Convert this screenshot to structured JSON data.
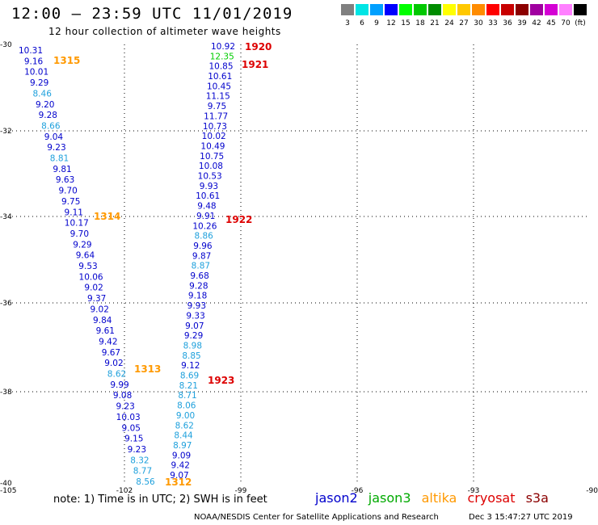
{
  "header": {
    "title": "12:00 – 23:59 UTC 11/01/2019",
    "subtitle": "12 hour collection of altimeter wave heights"
  },
  "legend": {
    "colors": [
      "#808080",
      "#00e5e5",
      "#00a0ff",
      "#0000ff",
      "#00ff00",
      "#00c800",
      "#008c00",
      "#ffff00",
      "#ffc800",
      "#ff8c00",
      "#ff0000",
      "#c80000",
      "#8c0000",
      "#a000a0",
      "#d400d4",
      "#ff80ff",
      "#000000"
    ],
    "labels": [
      "3",
      "6",
      "9",
      "12",
      "15",
      "18",
      "21",
      "24",
      "27",
      "30",
      "33",
      "36",
      "39",
      "42",
      "45",
      "70",
      "(ft)"
    ]
  },
  "axes": {
    "lat_labels": [
      "-30",
      "-32",
      "-34",
      "-36",
      "-38",
      "-40"
    ],
    "lon_labels": [
      "-105",
      "-102",
      "-99",
      "-96",
      "-93",
      "-90"
    ]
  },
  "track_west": {
    "values": [
      "10.31",
      "9.16",
      "10.01",
      "9.29",
      "8.46",
      "9.20",
      "9.28",
      "8.66",
      "9.04",
      "9.23",
      "8.81",
      "9.81",
      "9.63",
      "9.70",
      "9.75",
      "9.11",
      "10.17",
      "9.70",
      "9.29",
      "9.64",
      "9.53",
      "10.06",
      "9.02",
      "9.37",
      "9.02",
      "9.84",
      "9.61",
      "9.42",
      "9.67",
      "9.02",
      "8.62",
      "9.99",
      "9.08",
      "9.23",
      "10.03",
      "9.05",
      "9.15",
      "9.23",
      "8.32",
      "8.77",
      "8.56"
    ],
    "colors": [
      "b",
      "b",
      "b",
      "b",
      "c",
      "b",
      "b",
      "c",
      "b",
      "b",
      "c",
      "b",
      "b",
      "b",
      "b",
      "b",
      "b",
      "b",
      "b",
      "b",
      "b",
      "b",
      "b",
      "b",
      "b",
      "b",
      "b",
      "b",
      "b",
      "b",
      "c",
      "b",
      "b",
      "b",
      "b",
      "b",
      "b",
      "b",
      "c",
      "c",
      "c"
    ]
  },
  "track_east": {
    "values": [
      "10.92",
      "12.35",
      "10.85",
      "10.61",
      "10.45",
      "11.15",
      "9.75",
      "11.77",
      "10.73",
      "10.02",
      "10.49",
      "10.75",
      "10.08",
      "10.53",
      "9.93",
      "10.61",
      "9.48",
      "9.91",
      "10.26",
      "8.86",
      "9.96",
      "9.87",
      "8.87",
      "9.68",
      "9.28",
      "9.18",
      "9.93",
      "9.33",
      "9.07",
      "9.29",
      "8.98",
      "8.85",
      "9.12",
      "8.69",
      "8.21",
      "8.71",
      "8.06",
      "9.00",
      "8.62",
      "8.44",
      "8.97",
      "9.09",
      "9.42",
      "9.07"
    ],
    "colors": [
      "b",
      "g",
      "b",
      "b",
      "b",
      "b",
      "b",
      "b",
      "b",
      "b",
      "b",
      "b",
      "b",
      "b",
      "b",
      "b",
      "b",
      "b",
      "b",
      "c",
      "b",
      "b",
      "c",
      "b",
      "b",
      "b",
      "b",
      "b",
      "b",
      "b",
      "c",
      "c",
      "b",
      "c",
      "c",
      "c",
      "c",
      "c",
      "c",
      "c",
      "c",
      "b",
      "b",
      "b"
    ]
  },
  "time_labels_west": [
    "1315",
    "1314",
    "1313",
    "1312"
  ],
  "time_labels_east": [
    "1920",
    "1921",
    "1922",
    "1923"
  ],
  "footer": {
    "note": "note:  1) Time is in UTC;  2) SWH is in feet",
    "satellites": [
      "jason2",
      "jason3",
      "altika",
      "cryosat",
      "s3a"
    ],
    "credit": "NOAA/NESDIS Center for Satellite Applications and Research",
    "timestamp": "Dec  3 15:47:27 UTC 2019"
  },
  "colors": {
    "blue": "#0000cc",
    "cyan": "#1ea0dc",
    "green": "#00cc00",
    "orange": "#ff9900",
    "red": "#dd0000",
    "track_time": "#ff9900"
  }
}
